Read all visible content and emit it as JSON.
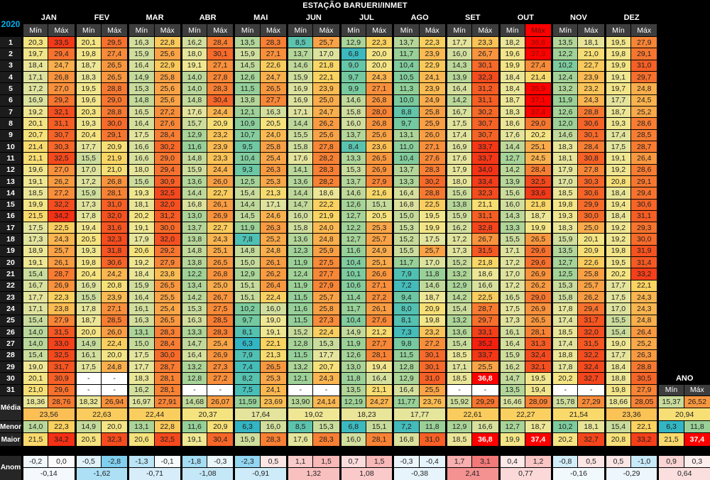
{
  "title": "ESTAÇÃO BARUERI/INMET",
  "year": "2020",
  "months": [
    "JAN",
    "FEV",
    "MAR",
    "ABR",
    "MAI",
    "JUN",
    "JUL",
    "AGO",
    "SET",
    "OUT",
    "NOV",
    "DEZ"
  ],
  "subheaders": {
    "min": "Mín",
    "max": "Máx"
  },
  "ano_label": "ANO",
  "row_labels": {
    "media": "Média",
    "menor": "Menor",
    "maior": "Maior",
    "anom": "Anom"
  },
  "days": [
    {
      "day": "1",
      "values": [
        "20,3",
        "33,5",
        "20,1",
        "29,5",
        "16,3",
        "22,8",
        "16,2",
        "28,4",
        "13,5",
        "28,3",
        "8,5",
        "25,7",
        "12,9",
        "22,3",
        "13,7",
        "22,3",
        "17,7",
        "23,3",
        "18,2",
        "36,6",
        "13,5",
        "18,1",
        "19,5",
        "27,9"
      ]
    },
    {
      "day": "2",
      "values": [
        "19,7",
        "29,4",
        "19,8",
        "27,4",
        "15,9",
        "25,6",
        "18,0",
        "30,1",
        "15,9",
        "27,1",
        "13,7",
        "17,0",
        "6,8",
        "20,0",
        "11,7",
        "23,9",
        "16,0",
        "26,7",
        "19,6",
        "37,3",
        "12,2",
        "21,0",
        "19,8",
        "29,1"
      ]
    },
    {
      "day": "3",
      "values": [
        "18,4",
        "24,7",
        "18,7",
        "26,5",
        "16,4",
        "22,9",
        "19,1",
        "27,1",
        "14,5",
        "22,6",
        "14,6",
        "21,8",
        "9,0",
        "20,0",
        "10,4",
        "22,9",
        "14,3",
        "30,1",
        "19,9",
        "27,4",
        "10,2",
        "22,7",
        "19,9",
        "31,0"
      ]
    },
    {
      "day": "4",
      "values": [
        "17,1",
        "26,8",
        "18,3",
        "26,5",
        "14,9",
        "25,8",
        "14,0",
        "27,8",
        "12,6",
        "24,7",
        "15,9",
        "22,1",
        "9,7",
        "24,3",
        "10,5",
        "24,1",
        "13,9",
        "32,3",
        "18,4",
        "21,4",
        "12,4",
        "23,9",
        "19,1",
        "29,7"
      ]
    },
    {
      "day": "5",
      "values": [
        "17,2",
        "27,0",
        "19,5",
        "28,8",
        "15,3",
        "25,6",
        "14,0",
        "28,3",
        "11,5",
        "26,5",
        "16,9",
        "23,9",
        "9,9",
        "27,1",
        "11,3",
        "23,9",
        "16,4",
        "31,2",
        "18,4",
        "35,9",
        "13,2",
        "23,2",
        "19,7",
        "24,8"
      ]
    },
    {
      "day": "6",
      "values": [
        "16,9",
        "29,2",
        "19,6",
        "29,0",
        "14,8",
        "25,6",
        "14,8",
        "30,4",
        "13,8",
        "27,7",
        "16,9",
        "25,0",
        "14,6",
        "26,8",
        "10,0",
        "24,9",
        "14,2",
        "31,1",
        "18,7",
        "37,1",
        "11,9",
        "24,3",
        "17,7",
        "24,5"
      ]
    },
    {
      "day": "7",
      "values": [
        "19,2",
        "32,1",
        "20,3",
        "28,8",
        "16,5",
        "27,2",
        "17,6",
        "24,4",
        "12,1",
        "16,3",
        "17,1",
        "24,7",
        "15,8",
        "28,0",
        "8,8",
        "25,8",
        "16,7",
        "30,2",
        "18,3",
        "37,4",
        "12,6",
        "28,8",
        "18,7",
        "25,2"
      ]
    },
    {
      "day": "8",
      "values": [
        "20,1",
        "31,1",
        "19,3",
        "30,0",
        "16,4",
        "27,6",
        "15,7",
        "20,9",
        "10,9",
        "20,5",
        "14,4",
        "26,2",
        "16,0",
        "26,8",
        "9,7",
        "25,9",
        "17,5",
        "30,7",
        "18,6",
        "29,0",
        "12,0",
        "30,6",
        "19,3",
        "28,6"
      ]
    },
    {
      "day": "9",
      "values": [
        "20,7",
        "30,7",
        "20,4",
        "29,1",
        "17,5",
        "28,4",
        "12,9",
        "23,2",
        "10,7",
        "24,0",
        "15,5",
        "25,6",
        "13,7",
        "25,6",
        "13,1",
        "26,0",
        "17,4",
        "30,7",
        "17,6",
        "20,2",
        "14,6",
        "30,1",
        "17,4",
        "28,5"
      ]
    },
    {
      "day": "10",
      "values": [
        "21,4",
        "30,3",
        "17,7",
        "20,9",
        "16,6",
        "30,2",
        "11,6",
        "23,9",
        "9,5",
        "25,8",
        "15,8",
        "27,8",
        "8,4",
        "23,6",
        "11,0",
        "27,1",
        "16,9",
        "33,7",
        "14,4",
        "25,1",
        "18,3",
        "28,4",
        "17,5",
        "28,7"
      ]
    },
    {
      "day": "11",
      "values": [
        "21,1",
        "32,5",
        "15,5",
        "21,9",
        "16,6",
        "29,0",
        "14,8",
        "23,3",
        "10,4",
        "25,4",
        "17,6",
        "28,2",
        "13,3",
        "26,5",
        "10,4",
        "27,6",
        "17,6",
        "33,7",
        "12,7",
        "24,5",
        "18,1",
        "30,8",
        "19,1",
        "26,4"
      ]
    },
    {
      "day": "12",
      "values": [
        "19,6",
        "27,0",
        "17,0",
        "21,0",
        "18,0",
        "29,4",
        "15,9",
        "24,4",
        "9,3",
        "26,3",
        "14,1",
        "28,3",
        "15,3",
        "26,9",
        "13,7",
        "28,3",
        "17,9",
        "34,0",
        "14,2",
        "28,4",
        "17,9",
        "27,8",
        "19,2",
        "28,6"
      ]
    },
    {
      "day": "13",
      "values": [
        "19,1",
        "26,2",
        "17,2",
        "26,8",
        "15,6",
        "30,9",
        "13,6",
        "26,0",
        "12,5",
        "25,3",
        "13,6",
        "28,2",
        "13,7",
        "27,9",
        "13,3",
        "30,2",
        "18,0",
        "33,4",
        "13,9",
        "32,5",
        "17,0",
        "30,3",
        "20,8",
        "29,1"
      ]
    },
    {
      "day": "14",
      "values": [
        "18,5",
        "27,2",
        "15,9",
        "28,1",
        "19,3",
        "32,5",
        "14,4",
        "22,7",
        "15,4",
        "21,3",
        "14,4",
        "18,6",
        "14,6",
        "21,6",
        "16,4",
        "28,8",
        "15,6",
        "32,3",
        "15,6",
        "33,6",
        "18,5",
        "30,6",
        "18,4",
        "29,4"
      ]
    },
    {
      "day": "15",
      "values": [
        "19,9",
        "32,2",
        "17,3",
        "31,0",
        "18,1",
        "32,0",
        "16,8",
        "26,1",
        "14,4",
        "17,1",
        "14,7",
        "22,2",
        "12,6",
        "15,1",
        "16,8",
        "22,5",
        "13,8",
        "21,1",
        "16,0",
        "21,8",
        "19,8",
        "29,9",
        "19,4",
        "30,6"
      ]
    },
    {
      "day": "16",
      "values": [
        "21,5",
        "34,2",
        "17,8",
        "32,0",
        "20,2",
        "31,2",
        "13,0",
        "26,9",
        "14,5",
        "24,6",
        "16,0",
        "21,9",
        "12,7",
        "20,5",
        "15,0",
        "19,5",
        "15,9",
        "31,1",
        "14,3",
        "18,7",
        "19,3",
        "30,0",
        "18,4",
        "31,1"
      ]
    },
    {
      "day": "17",
      "values": [
        "17,5",
        "22,5",
        "19,4",
        "31,6",
        "19,1",
        "30,0",
        "13,7",
        "22,7",
        "11,9",
        "26,3",
        "15,8",
        "24,0",
        "12,2",
        "25,3",
        "15,3",
        "19,9",
        "16,2",
        "32,8",
        "13,3",
        "19,9",
        "18,3",
        "25,0",
        "19,2",
        "29,3"
      ]
    },
    {
      "day": "18",
      "values": [
        "17,3",
        "24,3",
        "20,5",
        "32,3",
        "17,9",
        "32,0",
        "13,8",
        "24,3",
        "7,8",
        "25,2",
        "13,6",
        "24,8",
        "12,7",
        "25,7",
        "15,2",
        "17,5",
        "17,2",
        "26,7",
        "15,5",
        "26,5",
        "15,9",
        "20,1",
        "19,2",
        "30,0"
      ]
    },
    {
      "day": "19",
      "values": [
        "18,9",
        "25,7",
        "19,3",
        "31,8",
        "20,6",
        "29,2",
        "14,8",
        "25,1",
        "14,8",
        "24,8",
        "12,3",
        "25,9",
        "11,6",
        "24,9",
        "15,5",
        "25,7",
        "17,3",
        "31,5",
        "17,1",
        "29,6",
        "13,5",
        "20,9",
        "19,8",
        "31,9"
      ]
    },
    {
      "day": "20",
      "values": [
        "19,1",
        "26,1",
        "19,8",
        "30,6",
        "19,2",
        "27,9",
        "13,8",
        "26,5",
        "15,0",
        "26,1",
        "11,9",
        "27,5",
        "10,4",
        "25,1",
        "11,7",
        "17,0",
        "15,2",
        "21,8",
        "17,2",
        "29,6",
        "12,7",
        "22,6",
        "19,5",
        "31,4"
      ]
    },
    {
      "day": "21",
      "values": [
        "15,4",
        "28,7",
        "20,4",
        "24,2",
        "18,4",
        "23,8",
        "12,2",
        "26,8",
        "12,9",
        "26,2",
        "12,4",
        "27,7",
        "10,1",
        "26,6",
        "7,9",
        "11,8",
        "13,2",
        "18,6",
        "17,0",
        "26,9",
        "12,5",
        "25,8",
        "20,2",
        "33,2"
      ]
    },
    {
      "day": "22",
      "values": [
        "16,7",
        "26,9",
        "16,9",
        "20,8",
        "15,9",
        "26,5",
        "13,4",
        "25,0",
        "15,1",
        "26,4",
        "11,9",
        "27,9",
        "10,6",
        "27,1",
        "7,2",
        "14,6",
        "12,9",
        "16,6",
        "17,2",
        "26,2",
        "15,3",
        "25,7",
        "17,7",
        "22,1"
      ]
    },
    {
      "day": "23",
      "values": [
        "17,7",
        "22,3",
        "15,5",
        "23,9",
        "16,4",
        "25,5",
        "14,2",
        "26,7",
        "15,1",
        "22,4",
        "11,5",
        "25,7",
        "11,4",
        "27,2",
        "9,4",
        "18,7",
        "14,2",
        "22,5",
        "16,5",
        "29,0",
        "15,8",
        "26,2",
        "17,5",
        "24,3"
      ]
    },
    {
      "day": "24",
      "values": [
        "17,1",
        "23,8",
        "17,8",
        "27,1",
        "16,1",
        "25,4",
        "15,3",
        "27,5",
        "10,2",
        "16,0",
        "11,6",
        "25,8",
        "11,7",
        "26,1",
        "8,0",
        "20,9",
        "15,4",
        "28,7",
        "17,5",
        "26,9",
        "17,8",
        "29,4",
        "17,0",
        "24,3"
      ]
    },
    {
      "day": "25",
      "values": [
        "15,4",
        "27,9",
        "18,7",
        "28,5",
        "16,3",
        "26,5",
        "16,3",
        "28,5",
        "9,7",
        "19,0",
        "11,5",
        "27,3",
        "10,4",
        "27,6",
        "8,1",
        "19,8",
        "13,2",
        "29,7",
        "17,3",
        "26,5",
        "17,4",
        "31,7",
        "15,5",
        "24,8"
      ]
    },
    {
      "day": "26",
      "values": [
        "14,0",
        "31,5",
        "20,0",
        "26,0",
        "13,1",
        "28,3",
        "13,3",
        "28,3",
        "8,1",
        "19,1",
        "15,2",
        "22,4",
        "14,9",
        "21,2",
        "7,3",
        "23,2",
        "13,6",
        "33,1",
        "16,1",
        "28,1",
        "18,5",
        "32,0",
        "15,4",
        "26,4"
      ]
    },
    {
      "day": "27",
      "values": [
        "14,0",
        "33,0",
        "14,9",
        "22,4",
        "15,0",
        "28,4",
        "14,7",
        "25,4",
        "6,3",
        "22,1",
        "12,8",
        "15,3",
        "11,9",
        "27,7",
        "9,8",
        "27,2",
        "15,4",
        "35,2",
        "16,4",
        "31,3",
        "17,4",
        "31,5",
        "19,0",
        "25,2"
      ]
    },
    {
      "day": "28",
      "values": [
        "15,4",
        "32,5",
        "16,1",
        "20,0",
        "17,5",
        "30,0",
        "16,4",
        "26,9",
        "7,9",
        "21,3",
        "11,5",
        "17,7",
        "12,6",
        "28,1",
        "11,5",
        "30,1",
        "18,5",
        "33,7",
        "15,9",
        "32,4",
        "18,8",
        "32,2",
        "17,7",
        "26,3"
      ]
    },
    {
      "day": "29",
      "values": [
        "19,0",
        "31,7",
        "17,5",
        "24,8",
        "17,7",
        "28,7",
        "13,2",
        "27,3",
        "7,4",
        "26,5",
        "13,2",
        "20,7",
        "13,0",
        "19,4",
        "12,8",
        "30,1",
        "17,1",
        "25,5",
        "16,2",
        "32,1",
        "17,8",
        "32,4",
        "18,4",
        "28,8"
      ]
    },
    {
      "day": "30",
      "values": [
        "20,1",
        "30,9",
        "-",
        "-",
        "18,3",
        "28,1",
        "12,8",
        "27,2",
        "8,2",
        "25,3",
        "12,1",
        "24,3",
        "11,8",
        "16,4",
        "12,9",
        "31,0",
        "18,5",
        "36,8",
        "14,7",
        "19,5",
        "20,2",
        "32,7",
        "18,8",
        "30,5"
      ]
    },
    {
      "day": "31",
      "values": [
        "21,0",
        "29,6",
        "-",
        "-",
        "16,2",
        "28,1",
        "-",
        "-",
        "7,5",
        "24,1",
        "-",
        "-",
        "13,5",
        "21,1",
        "16,4",
        "25,5",
        "-",
        "-",
        "13,5",
        "19,4",
        "-",
        "-",
        "19,8",
        "27,9"
      ]
    }
  ],
  "media_minmax": [
    "18,36",
    "28,76",
    "18,32",
    "26,94",
    "16,97",
    "27,91",
    "14,68",
    "26,07",
    "11,59",
    "23,69",
    "13,90",
    "24,14",
    "12,19",
    "24,27",
    "11,77",
    "23,76",
    "15,92",
    "29,29",
    "16,46",
    "28,09",
    "15,78",
    "27,29",
    "18,66",
    "28,05"
  ],
  "media_ano": [
    "15,37",
    "26,52"
  ],
  "media_merged": [
    "23,56",
    "22,63",
    "22,44",
    "20,37",
    "17,64",
    "19,02",
    "18,23",
    "17,77",
    "22,61",
    "22,27",
    "21,54",
    "23,36"
  ],
  "media_merged_ano": "20,94",
  "menor": [
    "14,0",
    "22,3",
    "14,9",
    "20,0",
    "13,1",
    "22,8",
    "11,6",
    "20,9",
    "6,3",
    "16,0",
    "8,5",
    "15,3",
    "6,8",
    "15,1",
    "7,2",
    "11,8",
    "12,9",
    "16,6",
    "12,7",
    "18,7",
    "10,2",
    "18,1",
    "15,4",
    "22,1"
  ],
  "menor_ano": [
    "6,3",
    "11,8"
  ],
  "maior": [
    "21,5",
    "34,2",
    "20,5",
    "32,3",
    "20,6",
    "32,5",
    "19,1",
    "30,4",
    "15,9",
    "28,3",
    "17,6",
    "28,3",
    "16,0",
    "28,1",
    "16,8",
    "31,0",
    "18,5",
    "36,8",
    "19,9",
    "37,4",
    "20,2",
    "32,7",
    "20,8",
    "33,2"
  ],
  "maior_ano": [
    "21,5",
    "37,4"
  ],
  "anom": [
    "-0,2",
    "0,0",
    "-0,5",
    "-2,8",
    "-1,3",
    "-0,1",
    "-1,8",
    "-0,3",
    "-2,3",
    "0,5",
    "1,1",
    "1,5",
    "0,7",
    "1,5",
    "-0,3",
    "-0,4",
    "1,7",
    "3,1",
    "0,4",
    "1,2",
    "-0,8",
    "0,5",
    "0,5",
    "-1,0"
  ],
  "anom_ano": [
    "0,9",
    "0,3"
  ],
  "anom_merged": [
    "-0,14",
    "-1,62",
    "-0,71",
    "-1,08",
    "-0,91",
    "1,32",
    "1,08",
    "-0,38",
    "2,41",
    "0,77",
    "-0,16",
    "-0,29"
  ],
  "anom_merged_ano": "0,64",
  "colors": {
    "extreme_red": "#ff0000",
    "header_bg": "#3d3d3d",
    "month_header_bg": "#000000",
    "year_accent": "#00b0f0",
    "dark_red_text": "#7e1200"
  },
  "white_text": {
    "day_cells": [
      [
        30,
        17
      ]
    ],
    "maior_cells": [
      17,
      19
    ],
    "maior_ano_cells": [
      1
    ],
    "out_max_header_red": true
  }
}
